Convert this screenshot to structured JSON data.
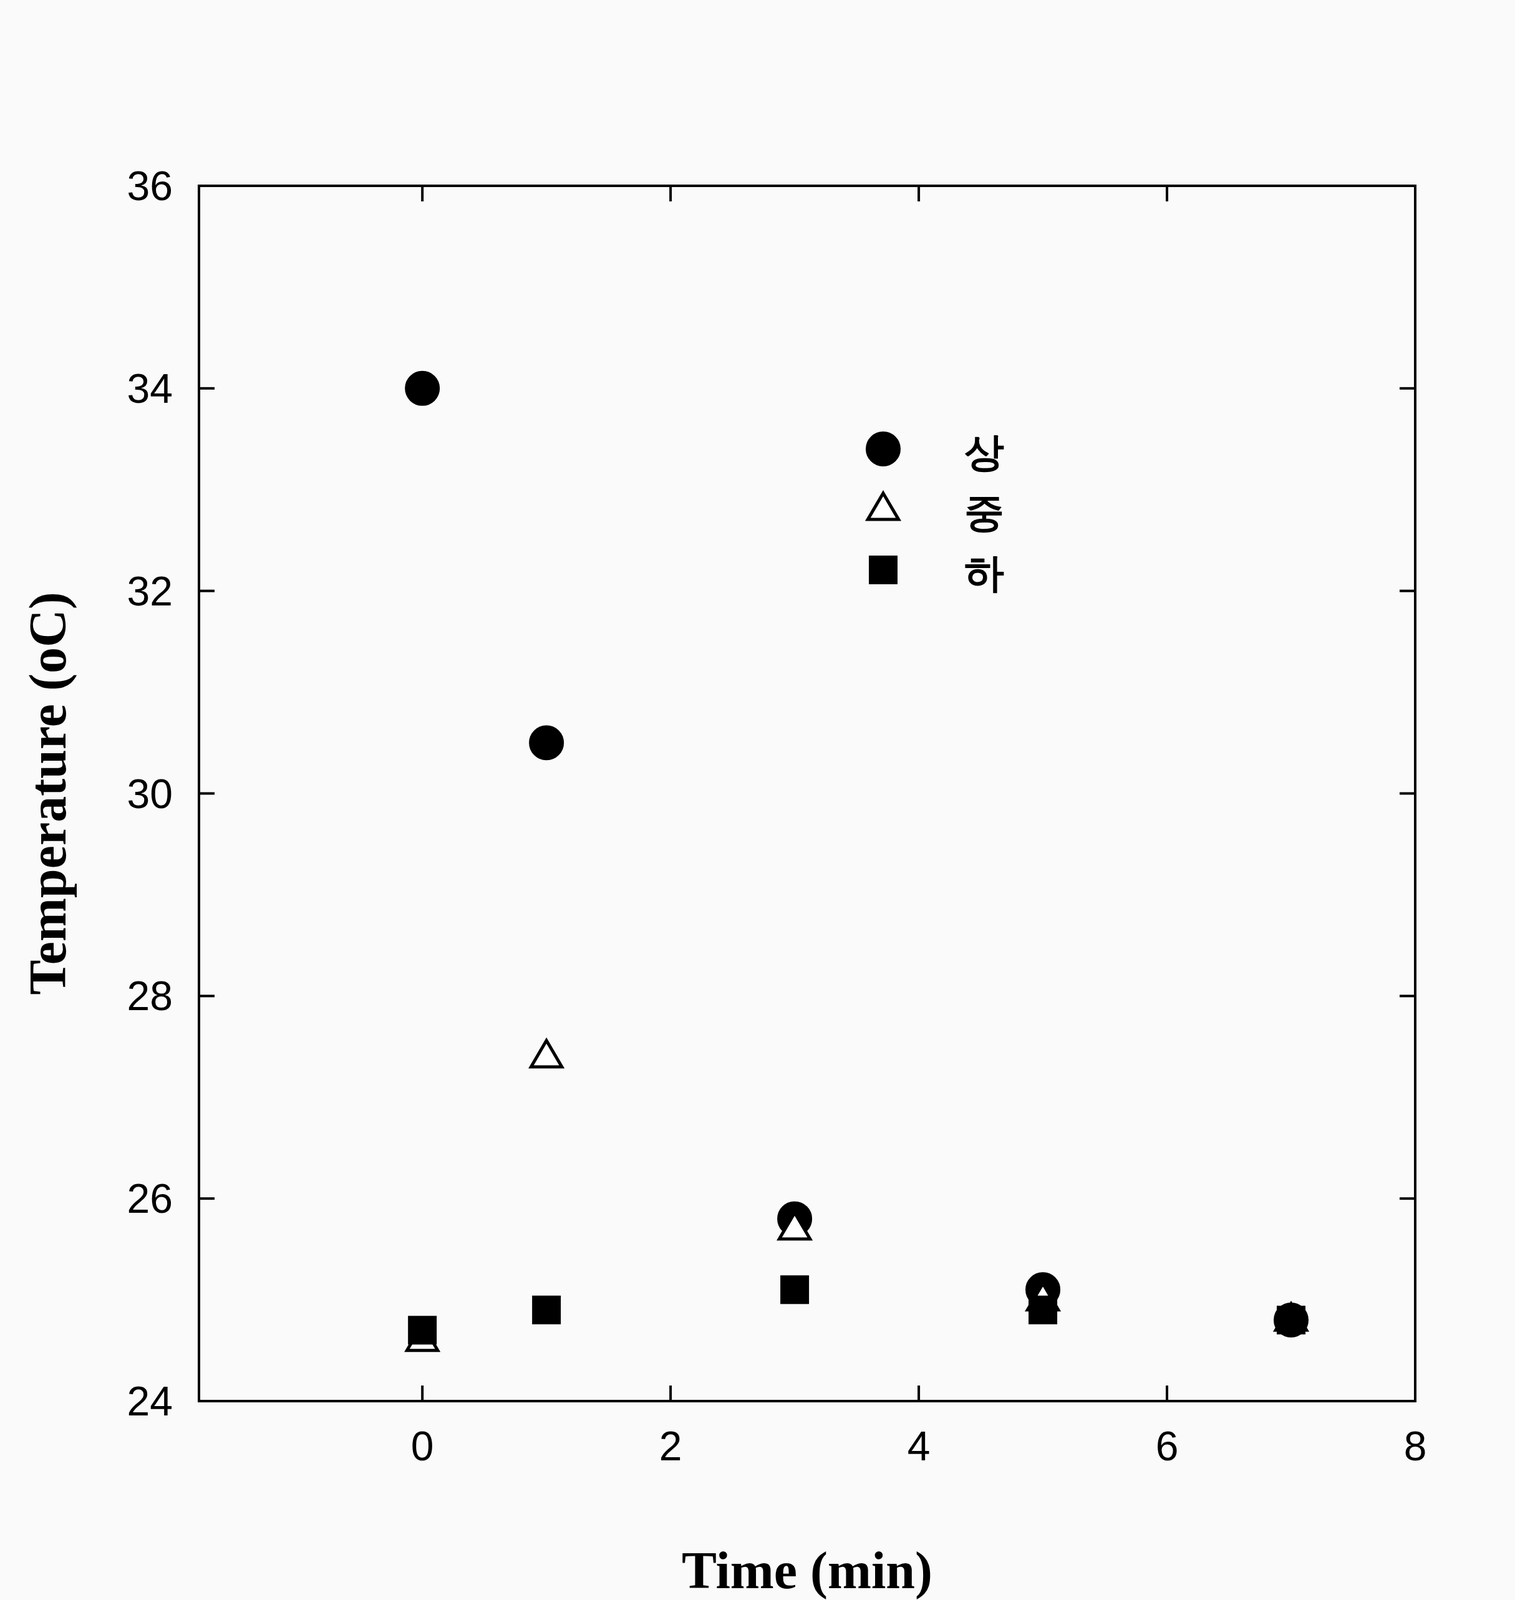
{
  "chart_data": {
    "type": "scatter",
    "x_label": "Time (min)",
    "y_label": "Temperature (oC)",
    "x": [
      0,
      1,
      3,
      5,
      7
    ],
    "series": [
      {
        "name": "상",
        "color": "#000000",
        "marker": "circle",
        "values": [
          34.0,
          30.5,
          25.8,
          25.1,
          24.8
        ]
      },
      {
        "name": "중",
        "color": "#000000",
        "marker": "triangle-open",
        "values": [
          24.6,
          27.4,
          25.7,
          25.0,
          24.8
        ]
      },
      {
        "name": "하",
        "color": "#000000",
        "marker": "square",
        "values": [
          24.7,
          24.9,
          25.1,
          24.9,
          24.8
        ]
      }
    ],
    "xlim": [
      -1.8,
      8
    ],
    "ylim": [
      24,
      36
    ],
    "xticks": [
      0,
      2,
      4,
      6,
      8
    ],
    "yticks": [
      24,
      26,
      28,
      30,
      32,
      34,
      36
    ],
    "grid": false,
    "legend": "top"
  }
}
